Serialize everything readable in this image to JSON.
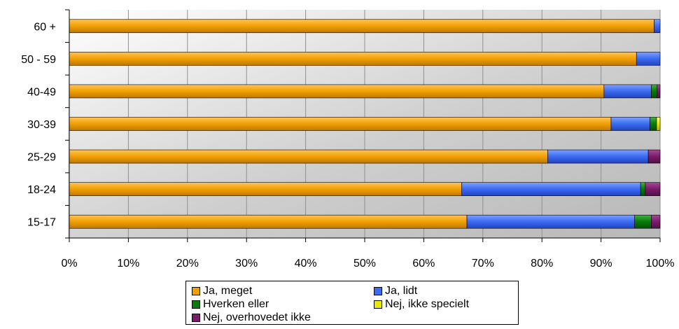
{
  "chart_data": {
    "type": "bar",
    "orientation": "horizontal",
    "stacked": true,
    "percent": true,
    "categories": [
      "60 +",
      "50 - 59",
      "40-49",
      "30-39",
      "25-29",
      "18-24",
      "15-17"
    ],
    "series": [
      {
        "name": "Ja, meget",
        "color": "#F0A000",
        "values": [
          99.0,
          96.0,
          90.5,
          91.7,
          81.0,
          66.4,
          67.3
        ]
      },
      {
        "name": "Ja, lidt",
        "color": "#3A6BF0",
        "values": [
          1.0,
          4.0,
          8.0,
          6.6,
          17.0,
          30.3,
          28.4
        ]
      },
      {
        "name": "Hverken eller",
        "color": "#0A7A0A",
        "values": [
          0,
          0,
          1.0,
          1.1,
          0,
          0.8,
          2.8
        ]
      },
      {
        "name": "Nej, ikke specielt",
        "color": "#E8E800",
        "values": [
          0,
          0,
          0,
          0.6,
          0,
          0,
          0
        ]
      },
      {
        "name": "Nej, overhovedet ikke",
        "color": "#7A1A6A",
        "values": [
          0,
          0,
          0.5,
          0,
          2.0,
          2.5,
          1.5
        ]
      }
    ],
    "x_ticks": [
      "0%",
      "10%",
      "20%",
      "30%",
      "40%",
      "50%",
      "60%",
      "70%",
      "80%",
      "90%",
      "100%"
    ],
    "xlim": [
      0,
      100
    ],
    "grid": true,
    "legend_position": "bottom"
  },
  "legend": {
    "items": [
      "Ja, meget",
      "Ja, lidt",
      "Hverken eller",
      "Nej, ikke specielt",
      "Nej, overhovedet ikke"
    ]
  }
}
